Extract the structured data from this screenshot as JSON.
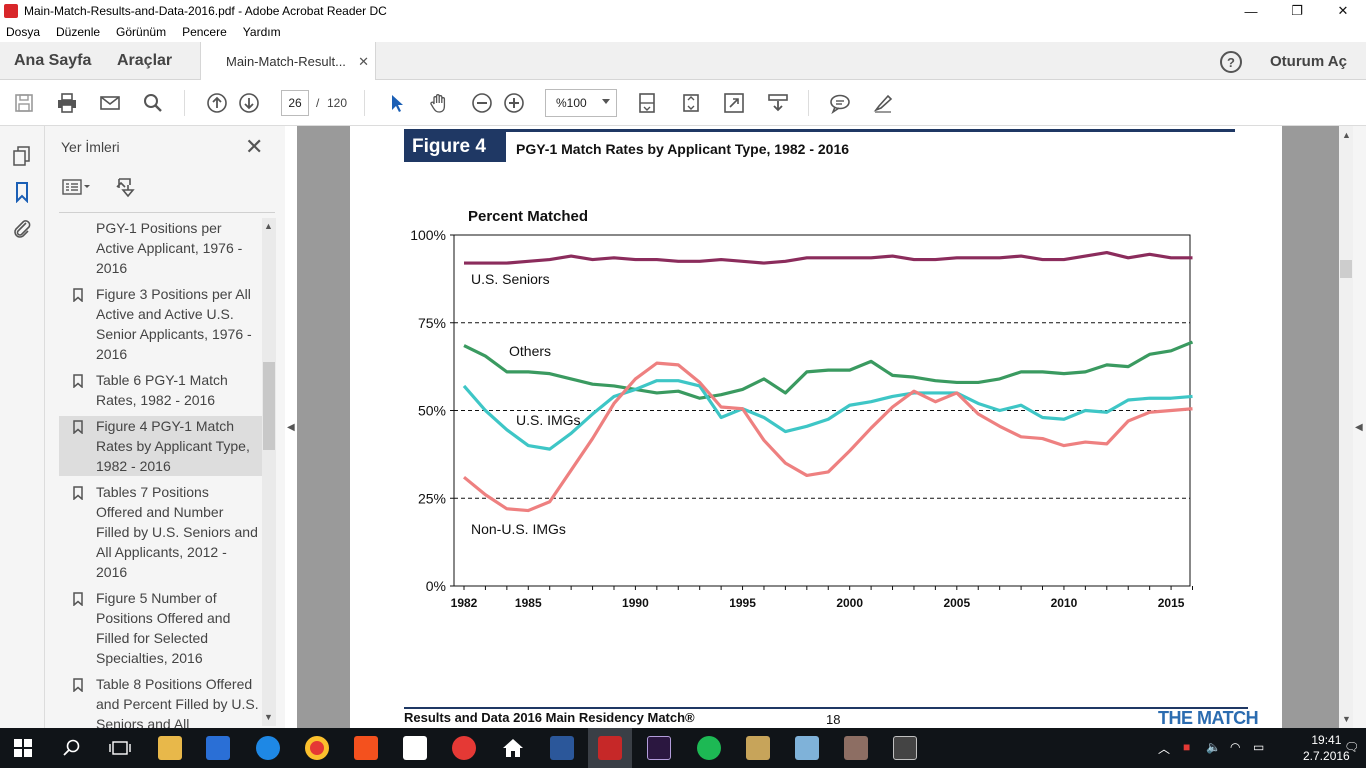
{
  "window": {
    "title": "Main-Match-Results-and-Data-2016.pdf - Adobe Acrobat Reader DC",
    "minimize": "—",
    "restore": "❐",
    "close": "✕"
  },
  "menu": [
    "Dosya",
    "Düzenle",
    "Görünüm",
    "Pencere",
    "Yardım"
  ],
  "tabs": {
    "home": "Ana Sayfa",
    "tools": "Araçlar",
    "document": "Main-Match-Result...",
    "document_close": "✕",
    "help": "?",
    "signin": "Oturum Aç"
  },
  "toolbar": {
    "page_current": "26",
    "page_separator": "/",
    "page_total": "120",
    "zoom": "%100"
  },
  "bookmarks": {
    "title": "Yer İmleri",
    "close": "✕",
    "items": [
      {
        "label": "PGY-1 Positions per Active Applicant, 1976 - 2016",
        "flag": false,
        "selected": false
      },
      {
        "label": "Figure 3 Positions per All Active and Active U.S. Senior Applicants, 1976 - 2016",
        "flag": true,
        "selected": false
      },
      {
        "label": "Table 6 PGY-1 Match Rates, 1982 - 2016",
        "flag": true,
        "selected": false
      },
      {
        "label": "Figure 4 PGY-1 Match Rates by Applicant Type, 1982 - 2016",
        "flag": true,
        "selected": true
      },
      {
        "label": "Tables 7 Positions Offered and Number Filled by U.S. Seniors and All Applicants, 2012 - 2016",
        "flag": true,
        "selected": false
      },
      {
        "label": "Figure 5 Number of Positions Offered and Filled for Selected Specialties, 2016",
        "flag": true,
        "selected": false
      },
      {
        "label": "Table 8 Positions Offered and Percent Filled by U.S. Seniors and All",
        "flag": true,
        "selected": false
      }
    ]
  },
  "page": {
    "figure_label": "Figure 4",
    "figure_title": "PGY-1 Match Rates by Applicant Type, 1982 - 2016",
    "footer_text": "Results and Data 2016 Main Residency Match®",
    "footer_page": "18",
    "footer_logo": "THE MATCH"
  },
  "chart_data": {
    "type": "line",
    "title": "Percent Matched",
    "xlabel": "",
    "ylabel": "Percent Matched",
    "xlim": [
      1982,
      2016
    ],
    "ylim": [
      0,
      100
    ],
    "x_ticks": [
      1982,
      1985,
      1990,
      1995,
      2000,
      2005,
      2010,
      2015
    ],
    "y_ticks": [
      "0%",
      "25%",
      "50%",
      "75%",
      "100%"
    ],
    "reference_lines": [
      25,
      50,
      75
    ],
    "x": [
      1982,
      1983,
      1984,
      1985,
      1986,
      1987,
      1988,
      1989,
      1990,
      1991,
      1992,
      1993,
      1994,
      1995,
      1996,
      1997,
      1998,
      1999,
      2000,
      2001,
      2002,
      2003,
      2004,
      2005,
      2006,
      2007,
      2008,
      2009,
      2010,
      2011,
      2012,
      2013,
      2014,
      2015,
      2016
    ],
    "series": [
      {
        "name": "U.S. Seniors",
        "color": "#8b2c5c",
        "values": [
          92,
          92,
          92,
          92.5,
          93,
          94,
          93,
          93.5,
          93,
          93,
          92.5,
          92.5,
          93,
          92.5,
          92,
          92.5,
          93.5,
          93.5,
          93.5,
          93.5,
          94,
          93,
          93,
          93.5,
          93.5,
          93.5,
          94,
          93,
          93,
          94,
          95,
          93.5,
          94.5,
          93.5,
          93.5
        ]
      },
      {
        "name": "Others",
        "color": "#3a9a60",
        "values": [
          68.5,
          65.5,
          61,
          61,
          60.5,
          59,
          57.5,
          57,
          56,
          55,
          55.5,
          53.5,
          54.5,
          56,
          59,
          55,
          61,
          61.5,
          61.5,
          64,
          60,
          59.5,
          58.5,
          58,
          58,
          59,
          61,
          61,
          60.5,
          61,
          63,
          62.5,
          66,
          67,
          69.5
        ]
      },
      {
        "name": "U.S. IMGs",
        "color": "#3ec6c6",
        "values": [
          57,
          50,
          44.5,
          40,
          39,
          43.5,
          49,
          54,
          56,
          58.5,
          58.5,
          57,
          48,
          50.5,
          48,
          44,
          45.5,
          47.5,
          51.5,
          52.5,
          54,
          55,
          55,
          55,
          52,
          50,
          51.5,
          48,
          47.5,
          50,
          49.5,
          53,
          53.5,
          53.5,
          54
        ]
      },
      {
        "name": "Non-U.S. IMGs",
        "color": "#ee8080",
        "values": [
          31,
          26,
          22,
          21.5,
          24,
          33,
          42,
          52,
          59,
          63.5,
          63,
          58,
          51,
          50.5,
          41.5,
          35,
          31.5,
          32.5,
          38.5,
          45,
          51,
          55.5,
          52.5,
          55,
          49,
          45.5,
          42.5,
          42,
          40,
          41,
          40.5,
          47,
          49.5,
          50,
          50.5
        ]
      }
    ],
    "labels": {
      "seniors": "U.S. Seniors",
      "others": "Others",
      "usimgs": "U.S. IMGs",
      "nonusimgs": "Non-U.S. IMGs"
    }
  },
  "taskbar": {
    "time": "19:41",
    "date": "2.7.2016",
    "tray_lang": "🗨"
  }
}
